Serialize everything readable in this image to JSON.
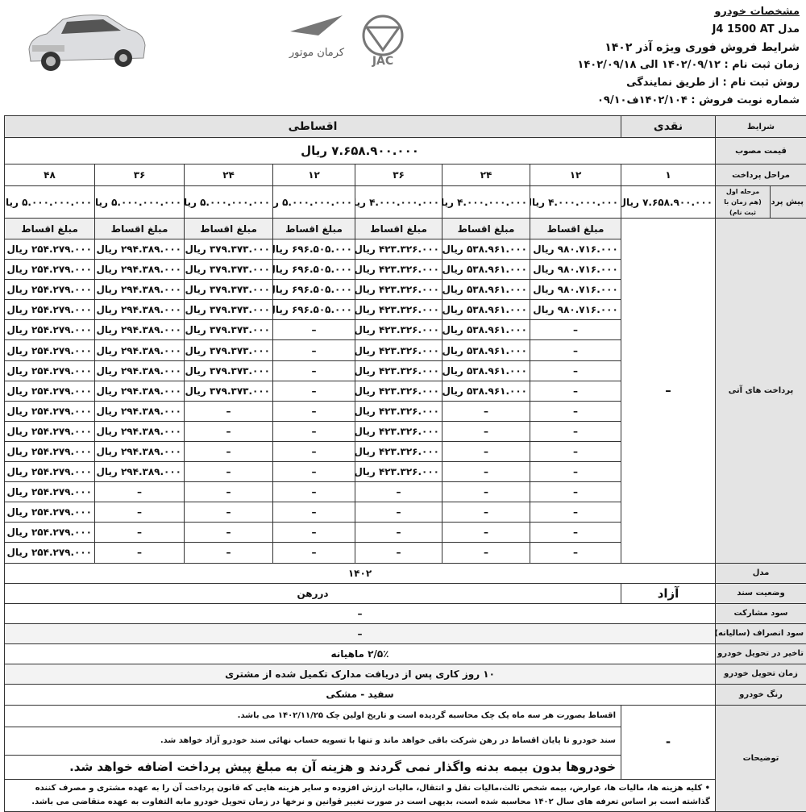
{
  "header": {
    "title": "مشخصات خودرو",
    "model_line": "مدل   J4 1500 AT",
    "conditions": "شرایط  فروش فوری  ویژه آذر ۱۴۰۲",
    "registration_time": "زمان ثبت نام : ۱۴۰۲/۰۹/۱۲ الی ۱۴۰۲/۰۹/۱۸",
    "registration_method": "روش ثبت نام : از طریق نمایندگی",
    "sale_number": "شماره نوبت فروش :  ۱۴۰۲/۱۰۴ف۰۹/۱۰"
  },
  "logos": {
    "brand": "JAC",
    "dealer": "کرمان موتور"
  },
  "table": {
    "labels": {
      "conditions": "شرایط",
      "price": "قیمت مصوب",
      "stages": "مراحل پرداخت",
      "prepayment": "پیش پرداخت",
      "first_stage": "مرحله اول\n(هم زمان با ثبت نام)",
      "future": "پرداخت های آتی",
      "model": "مدل",
      "doc_status": "وضعیت سند",
      "participation": "سود مشارکت",
      "cancellation": "سود انصراف (سالیانه)",
      "delay": "تاخیر در تحویل خودرو",
      "delivery": "زمان تحویل خودرو",
      "color": "رنگ خودرو",
      "notes": "توضیحات"
    },
    "cash_label": "نقدی",
    "installment_label": "اقساطی",
    "price": "۷.۶۵۸.۹۰۰.۰۰۰ ریال",
    "cash": {
      "stages": "۱",
      "prepayment": "۷.۶۵۸.۹۰۰.۰۰۰ ریال",
      "future": "–"
    },
    "installment_header": "مبلغ اقساط",
    "dash": "–",
    "plans": [
      {
        "stages": "۱۲",
        "prepayment": "۴.۰۰۰.۰۰۰.۰۰۰ ریال",
        "amount": "۹۸۰.۷۱۶.۰۰۰ ریال",
        "count": 4
      },
      {
        "stages": "۲۴",
        "prepayment": "۴.۰۰۰.۰۰۰.۰۰۰ ریال",
        "amount": "۵۳۸.۹۶۱.۰۰۰ ریال",
        "count": 8
      },
      {
        "stages": "۳۶",
        "prepayment": "۴.۰۰۰.۰۰۰.۰۰۰ ریال",
        "amount": "۴۲۳.۳۲۶.۰۰۰ ریال",
        "count": 12
      },
      {
        "stages": "۱۲",
        "prepayment": "۵.۰۰۰.۰۰۰.۰۰۰ ریال",
        "amount": "۶۹۶.۵۰۵.۰۰۰ ریال",
        "count": 4
      },
      {
        "stages": "۲۴",
        "prepayment": "۵.۰۰۰.۰۰۰.۰۰۰ ریال",
        "amount": "۳۷۹.۳۷۳.۰۰۰ ریال",
        "count": 8
      },
      {
        "stages": "۳۶",
        "prepayment": "۵.۰۰۰.۰۰۰.۰۰۰ ریال",
        "amount": "۲۹۴.۳۸۹.۰۰۰ ریال",
        "count": 12
      },
      {
        "stages": "۴۸",
        "prepayment": "۵.۰۰۰.۰۰۰.۰۰۰ ریال",
        "amount": "۲۵۴.۲۷۹.۰۰۰ ریال",
        "count": 16
      }
    ],
    "model": "۱۴۰۲",
    "doc_status_cash": "آزاد",
    "doc_status_installment": "دررهن",
    "participation": "–",
    "cancellation": "–",
    "delay": "۲/۵٪ ماهیانه",
    "delivery": "۱۰ روز کاری پس از دریافت مدارک تکمیل شده از مشتری",
    "color": "سفید - مشکی",
    "notes_cash": "-",
    "notes": [
      "اقساط بصورت هر سه ماه یک چک محاسبه گردیده است و تاریخ اولین چک  ۱۴۰۲/۱۱/۲۵ می باشد.",
      "سند خودرو تا پایان اقساط در رهن شرکت باقی خواهد ماند و تنها با تسویه حساب نهائی سند خودرو آزاد خواهد شد.",
      "خودروها بدون بیمه بدنه واگذار نمی گردند و هزینه آن به مبلغ پیش پرداخت اضافه خواهد شد.",
      "• کلیه هزینه ها، مالیات ها، عوارض، بیمه شخص ثالث،مالیات نقل و  انتقال، مالیات ارزش افزوده و سایر هزینه هایی که قانون پرداخت آن را به عهده مشتری و مصرف کننده گذاشته است بر اساس تعرفه های سال ۱۴۰۲ محاسبه شده است، بدیهی است در صورت تغییر قوانین و نرخها در زمان تحویل خودرو مابه التفاوت به عهده متقاضی می باشد."
    ]
  }
}
